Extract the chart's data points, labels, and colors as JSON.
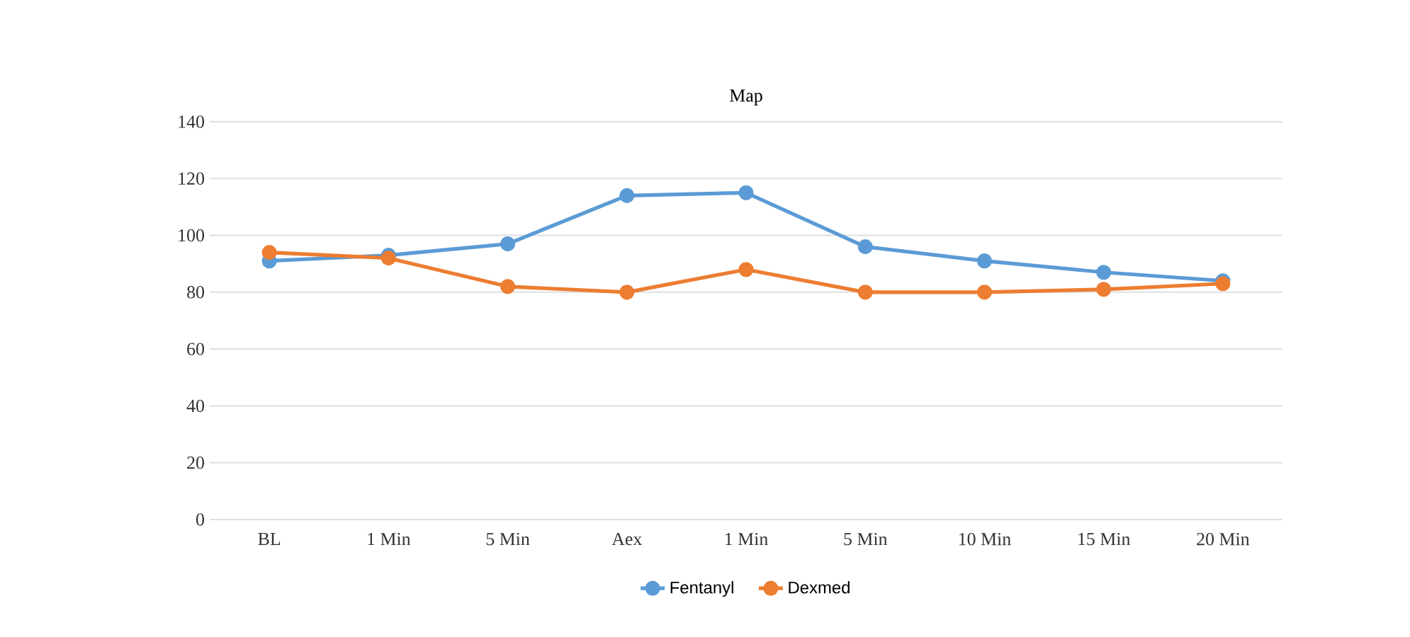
{
  "chart_data": {
    "type": "line",
    "title": "Map",
    "categories": [
      "BL",
      "1 Min",
      "5 Min",
      "Aex",
      "1 Min",
      "5 Min",
      "10 Min",
      "15 Min",
      "20 Min"
    ],
    "series": [
      {
        "name": "Fentanyl",
        "color": "#5b9bd5",
        "values": [
          91,
          93,
          97,
          114,
          115,
          96,
          91,
          87,
          84
        ]
      },
      {
        "name": "Dexmed",
        "color": "#ed7d31",
        "values": [
          94,
          92,
          82,
          80,
          88,
          80,
          80,
          81,
          83
        ]
      }
    ],
    "ylim": [
      0,
      140
    ],
    "yticks": [
      0,
      20,
      40,
      60,
      80,
      100,
      120,
      140
    ],
    "grid": "y",
    "legend": "bottom",
    "marker": "circle",
    "line_style": "solid"
  }
}
